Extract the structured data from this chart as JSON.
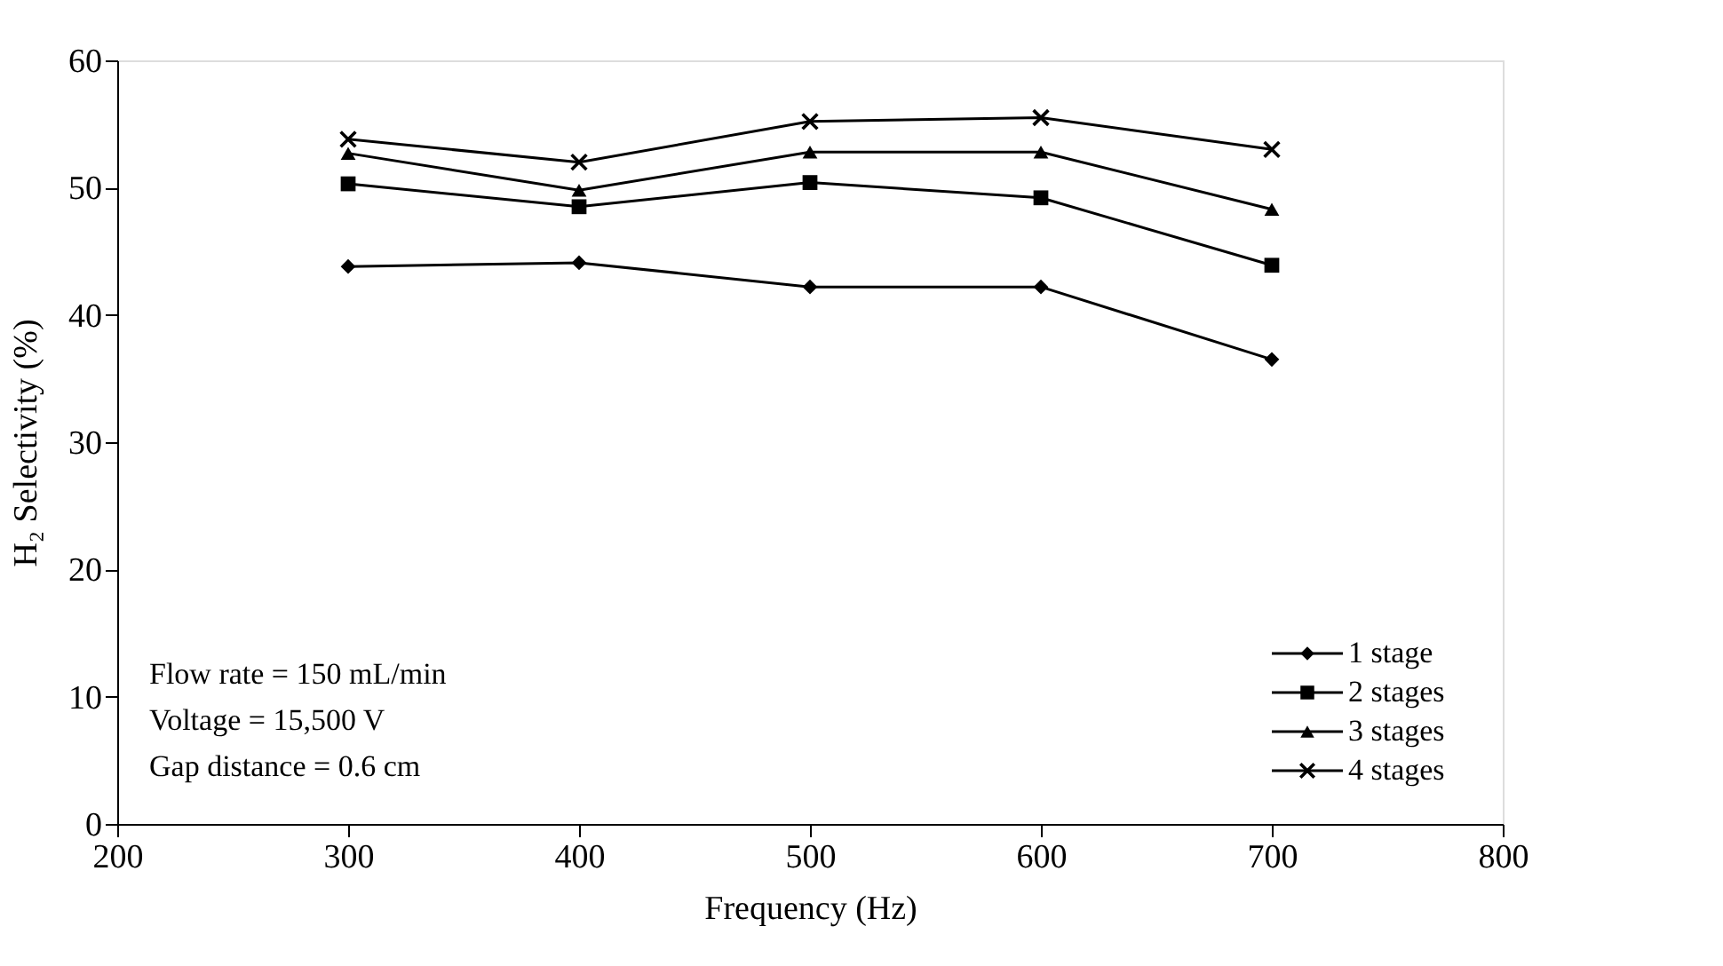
{
  "chart_data": {
    "type": "line",
    "xlabel": "Frequency (Hz)",
    "ylabel": "H₂ Selectivity (%)",
    "x": [
      300,
      400,
      500,
      600,
      700
    ],
    "xlim": [
      200,
      800
    ],
    "xticks": [
      200,
      300,
      400,
      500,
      600,
      700,
      800
    ],
    "ylim": [
      0,
      60
    ],
    "yticks": [
      0,
      10,
      20,
      30,
      40,
      50,
      60
    ],
    "grid": false,
    "legend": "bottom right",
    "line_style": "solid",
    "series": [
      {
        "name": "1 stage",
        "color": "#000000",
        "marker": "diamond",
        "values": [
          43.8,
          44.1,
          42.2,
          42.2,
          36.5
        ]
      },
      {
        "name": "2 stages",
        "color": "#000000",
        "marker": "square",
        "values": [
          50.3,
          48.5,
          50.4,
          49.2,
          43.9
        ]
      },
      {
        "name": "3 stages",
        "color": "#000000",
        "marker": "triangle",
        "values": [
          52.7,
          49.8,
          52.8,
          52.8,
          48.3
        ]
      },
      {
        "name": "4 stages",
        "color": "#000000",
        "marker": "cross",
        "values": [
          53.8,
          52.0,
          55.2,
          55.5,
          53.0
        ]
      }
    ],
    "annotations": [
      "Flow rate      = 150 mL/min",
      "Voltage         = 15,500 V",
      "Gap distance = 0.6 cm"
    ]
  }
}
